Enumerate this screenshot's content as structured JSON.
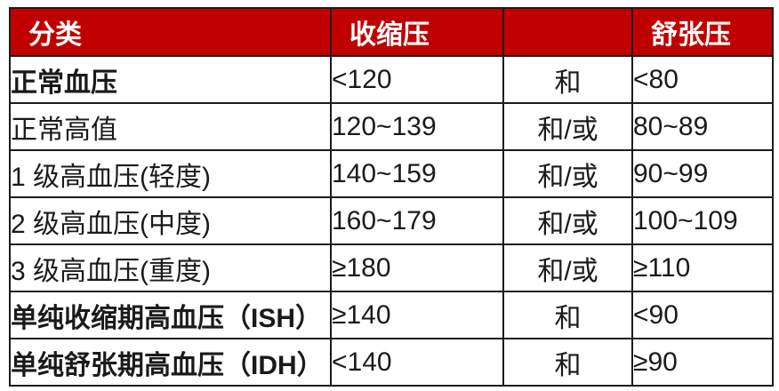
{
  "table": {
    "title_semantic": "血压分类表",
    "colors": {
      "header_bg": "#c00000",
      "header_text": "#ffffff",
      "border": "#1b1b1b",
      "body_text": "#1a1a1a",
      "row_bg": "#ffffff"
    },
    "header": {
      "category": "分类",
      "systolic": "收缩压",
      "connector": "",
      "diastolic": "舒张压"
    },
    "rows": [
      {
        "category": "正常血压",
        "systolic": "<120",
        "connector": "和",
        "diastolic": "<80",
        "bold": true
      },
      {
        "category": "正常高值",
        "systolic": "120~139",
        "connector": "和/或",
        "diastolic": "80~89",
        "bold": false
      },
      {
        "category": "1 级高血压(轻度)",
        "systolic": "140~159",
        "connector": "和/或",
        "diastolic": "90~99",
        "bold": false
      },
      {
        "category": "2 级高血压(中度)",
        "systolic": "160~179",
        "connector": "和/或",
        "diastolic": "100~109",
        "bold": false
      },
      {
        "category": "3 级高血压(重度)",
        "systolic": "≥180",
        "connector": "和/或",
        "diastolic": "≥110",
        "bold": false
      },
      {
        "category": "单纯收缩期高血压（ISH）",
        "systolic": "≥140",
        "connector": "和",
        "diastolic": "<90",
        "bold": true
      },
      {
        "category": "单纯舒张期高血压（IDH）",
        "systolic": "<140",
        "connector": "和",
        "diastolic": "≥90",
        "bold": true
      }
    ]
  }
}
